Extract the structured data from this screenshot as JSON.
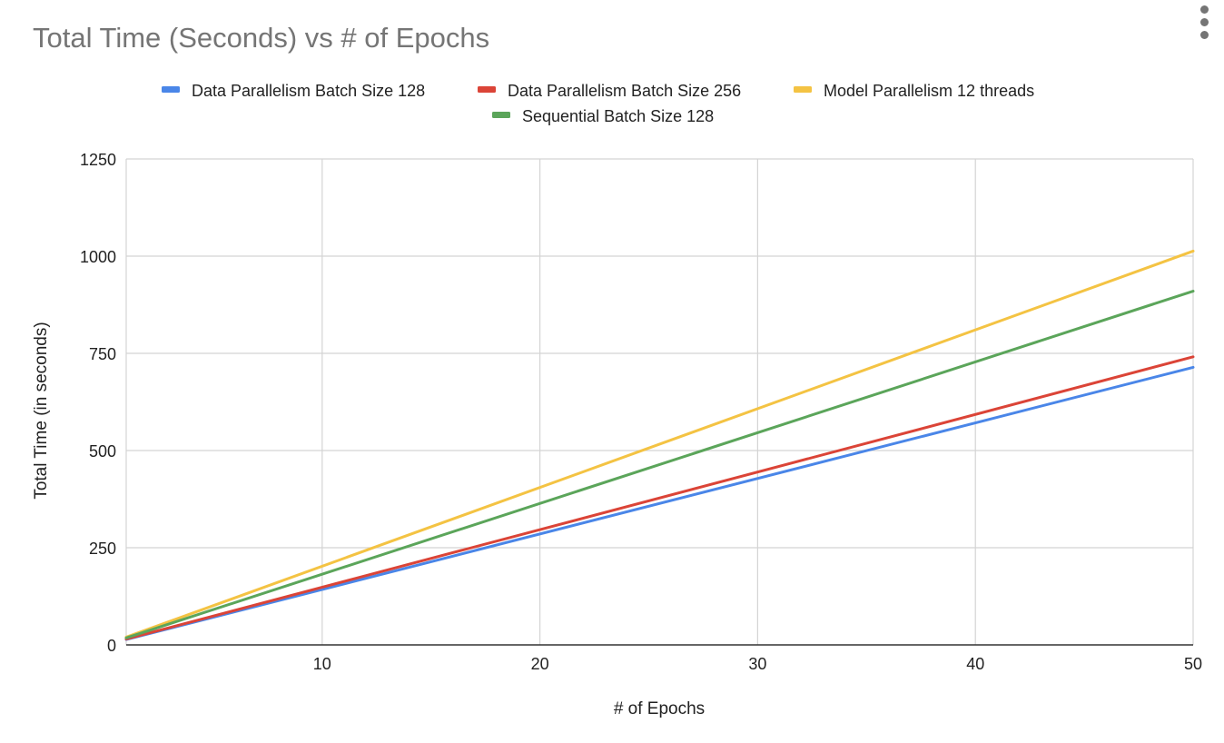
{
  "header": {
    "menu_icon": "vertical-dots-icon"
  },
  "chart_data": {
    "type": "line",
    "title": "Total Time (Seconds) vs # of Epochs",
    "xlabel": "# of Epochs",
    "ylabel": "Total Time (in seconds)",
    "xlim": [
      1,
      50
    ],
    "ylim": [
      0,
      1250
    ],
    "xticks": [
      10,
      20,
      30,
      40,
      50
    ],
    "yticks": [
      0,
      250,
      500,
      750,
      1000,
      1250
    ],
    "grid": true,
    "legend_position": "top",
    "x": [
      1,
      50
    ],
    "series": [
      {
        "name": "Data Parallelism Batch Size 128",
        "color": "#4a86e8",
        "values": [
          14,
          714
        ]
      },
      {
        "name": "Data Parallelism Batch Size 256",
        "color": "#db4437",
        "values": [
          15,
          741
        ]
      },
      {
        "name": "Model Parallelism 12 threads",
        "color": "#f4c343",
        "values": [
          20,
          1013
        ]
      },
      {
        "name": "Sequential Batch Size 128",
        "color": "#5ba55a",
        "values": [
          18,
          910
        ]
      }
    ]
  }
}
